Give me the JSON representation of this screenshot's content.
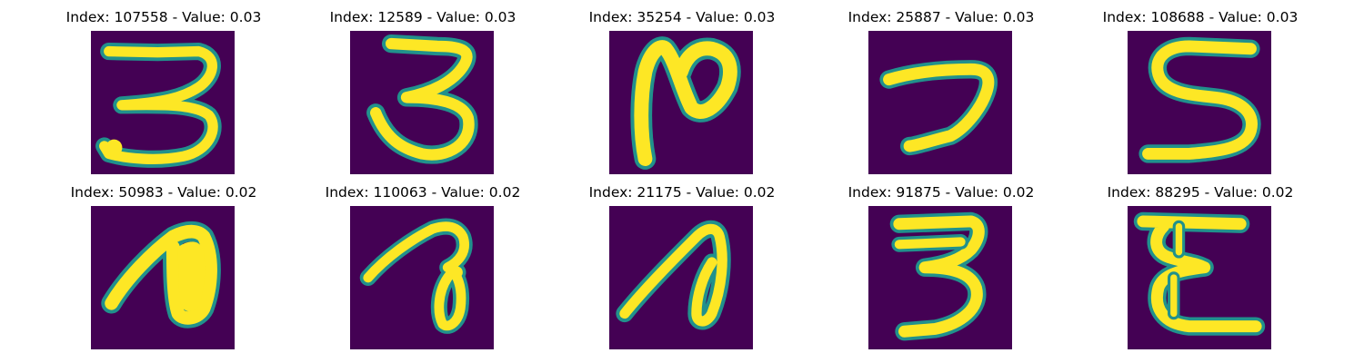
{
  "colors": {
    "background": "#440154",
    "stroke_core": "#fde725",
    "stroke_edge": "#21918c"
  },
  "panels": [
    {
      "title": "Index: 107558 - Value: 0.03",
      "glyph": "digit-three-curled"
    },
    {
      "title": "Index: 12589 - Value: 0.03",
      "glyph": "digit-three"
    },
    {
      "title": "Index: 35254 - Value: 0.03",
      "glyph": "letter-n-loop"
    },
    {
      "title": "Index: 25887 - Value: 0.03",
      "glyph": "digit-seven-hook"
    },
    {
      "title": "Index: 108688 - Value: 0.03",
      "glyph": "digit-five"
    },
    {
      "title": "Index: 50983 - Value: 0.02",
      "glyph": "filled-loop-stroke"
    },
    {
      "title": "Index: 110063 - Value: 0.02",
      "glyph": "looped-stroke"
    },
    {
      "title": "Index: 21175 - Value: 0.02",
      "glyph": "slanted-loop-stroke"
    },
    {
      "title": "Index: 91875 - Value: 0.02",
      "glyph": "digit-three-flat"
    },
    {
      "title": "Index: 88295 - Value: 0.02",
      "glyph": "letter-epsilon"
    }
  ]
}
